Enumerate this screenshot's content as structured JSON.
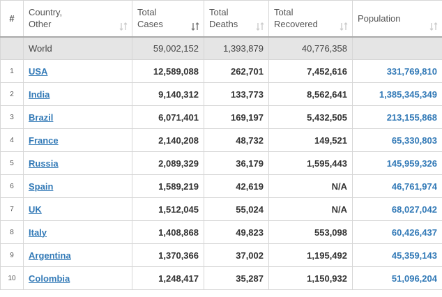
{
  "table": {
    "headers": [
      [
        "#"
      ],
      [
        "Country,",
        "Other"
      ],
      [
        "Total",
        "Cases"
      ],
      [
        "Total",
        "Deaths"
      ],
      [
        "Total",
        "Recovered"
      ],
      [
        "Population"
      ]
    ],
    "world": [
      "World",
      "59,002,152",
      "1,393,879",
      "40,776,358"
    ],
    "rows": [
      [
        "1",
        "USA",
        "12,589,088",
        "262,701",
        "7,452,616",
        "331,769,810"
      ],
      [
        "2",
        "India",
        "9,140,312",
        "133,773",
        "8,562,641",
        "1,385,345,349"
      ],
      [
        "3",
        "Brazil",
        "6,071,401",
        "169,197",
        "5,432,505",
        "213,155,868"
      ],
      [
        "4",
        "France",
        "2,140,208",
        "48,732",
        "149,521",
        "65,330,803"
      ],
      [
        "5",
        "Russia",
        "2,089,329",
        "36,179",
        "1,595,443",
        "145,959,326"
      ],
      [
        "6",
        "Spain",
        "1,589,219",
        "42,619",
        "N/A",
        "46,761,974"
      ],
      [
        "7",
        "UK",
        "1,512,045",
        "55,024",
        "N/A",
        "68,027,042"
      ],
      [
        "8",
        "Italy",
        "1,408,868",
        "49,823",
        "553,098",
        "60,426,437"
      ],
      [
        "9",
        "Argentina",
        "1,370,366",
        "37,002",
        "1,195,492",
        "45,359,143"
      ],
      [
        "10",
        "Colombia",
        "1,248,417",
        "35,287",
        "1,150,932",
        "51,096,204"
      ]
    ]
  }
}
